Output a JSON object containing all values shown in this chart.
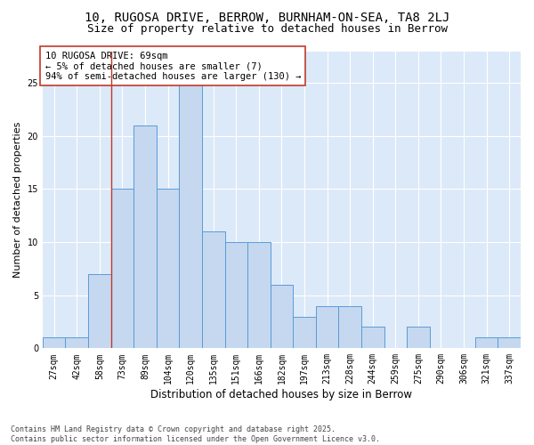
{
  "title1": "10, RUGOSA DRIVE, BERROW, BURNHAM-ON-SEA, TA8 2LJ",
  "title2": "Size of property relative to detached houses in Berrow",
  "xlabel": "Distribution of detached houses by size in Berrow",
  "ylabel": "Number of detached properties",
  "categories": [
    "27sqm",
    "42sqm",
    "58sqm",
    "73sqm",
    "89sqm",
    "104sqm",
    "120sqm",
    "135sqm",
    "151sqm",
    "166sqm",
    "182sqm",
    "197sqm",
    "213sqm",
    "228sqm",
    "244sqm",
    "259sqm",
    "275sqm",
    "290sqm",
    "306sqm",
    "321sqm",
    "337sqm"
  ],
  "values": [
    1,
    1,
    7,
    15,
    21,
    15,
    25,
    11,
    10,
    10,
    6,
    3,
    4,
    4,
    2,
    0,
    2,
    0,
    0,
    1,
    1
  ],
  "bar_color": "#c5d8f0",
  "bar_edge_color": "#5b9bd5",
  "vline_x_index": 2.5,
  "vline_color": "#c0392b",
  "annotation_text": "10 RUGOSA DRIVE: 69sqm\n← 5% of detached houses are smaller (7)\n94% of semi-detached houses are larger (130) →",
  "annotation_box_color": "#ffffff",
  "annotation_box_edge": "#c0392b",
  "ylim": [
    0,
    28
  ],
  "yticks": [
    0,
    5,
    10,
    15,
    20,
    25
  ],
  "bg_color": "#dce9f8",
  "footer": "Contains HM Land Registry data © Crown copyright and database right 2025.\nContains public sector information licensed under the Open Government Licence v3.0.",
  "title1_fontsize": 10,
  "title2_fontsize": 9,
  "xlabel_fontsize": 8.5,
  "ylabel_fontsize": 8,
  "tick_fontsize": 7,
  "annotation_fontsize": 7.5,
  "footer_fontsize": 6
}
